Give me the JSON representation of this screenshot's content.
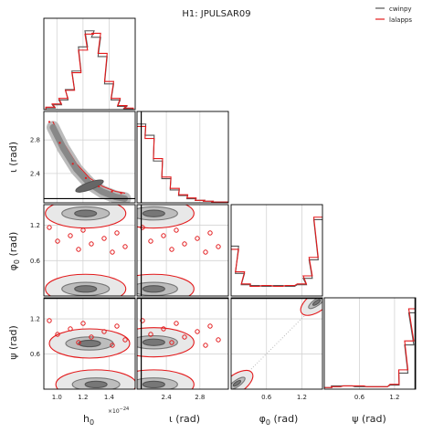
{
  "chart_data": {
    "type": "corner",
    "title": "H1: JPULSAR09",
    "legend": {
      "placement": "top-right",
      "entries": [
        {
          "name": "cwinpy",
          "color": "#555555"
        },
        {
          "name": "lalapps",
          "color": "#e31a1c"
        }
      ]
    },
    "colors": {
      "cwinpy": "#555555",
      "lalapps": "#e31a1c",
      "injection": "#000000"
    },
    "grid": true,
    "parameters": [
      {
        "key": "h0",
        "label": "h",
        "label_sub": "0",
        "range": [
          0.9,
          1.6
        ],
        "ticks": [
          1.0,
          1.2,
          1.4
        ],
        "tick_labels": [
          "1.0",
          "1.2",
          "1.4"
        ],
        "multiplier": "×10",
        "multiplier_exp": "−24"
      },
      {
        "key": "iota",
        "label": "ι (rad)",
        "range": [
          2.05,
          3.14
        ],
        "ticks": [
          2.4,
          2.8
        ],
        "tick_labels": [
          "2.4",
          "2.8"
        ],
        "injection": 2.1
      },
      {
        "key": "phi0",
        "label": "φ",
        "label_sub": "0",
        "label_unit": " (rad)",
        "range": [
          0.0,
          1.55
        ],
        "ticks": [
          0.6,
          1.2
        ],
        "tick_labels": [
          "0.6",
          "1.2"
        ]
      },
      {
        "key": "psi",
        "label": "ψ (rad)",
        "range": [
          0.0,
          1.56
        ],
        "ticks": [
          0.6,
          1.2
        ],
        "tick_labels": [
          "0.6",
          "1.2"
        ],
        "injection": 1.55
      }
    ],
    "marginals": {
      "h0": {
        "x": [
          0.95,
          1.0,
          1.05,
          1.1,
          1.15,
          1.2,
          1.25,
          1.3,
          1.35,
          1.4,
          1.45,
          1.5,
          1.55
        ],
        "cwinpy": [
          0.02,
          0.06,
          0.12,
          0.25,
          0.48,
          0.78,
          0.98,
          0.9,
          0.66,
          0.32,
          0.12,
          0.04,
          0.01
        ],
        "lalapps": [
          0.03,
          0.07,
          0.14,
          0.24,
          0.46,
          0.74,
          0.94,
          0.95,
          0.7,
          0.35,
          0.14,
          0.05,
          0.02
        ]
      },
      "iota": {
        "x": [
          2.1,
          2.2,
          2.3,
          2.4,
          2.5,
          2.6,
          2.7,
          2.8,
          2.9,
          3.0,
          3.1
        ],
        "cwinpy": [
          0.98,
          0.84,
          0.52,
          0.3,
          0.16,
          0.09,
          0.05,
          0.03,
          0.02,
          0.01,
          0.01
        ],
        "lalapps": [
          0.95,
          0.8,
          0.55,
          0.32,
          0.18,
          0.1,
          0.06,
          0.03,
          0.02,
          0.01,
          0.01
        ]
      },
      "phi0": {
        "x": [
          0.05,
          0.15,
          0.25,
          0.4,
          0.6,
          0.8,
          1.0,
          1.2,
          1.3,
          1.4,
          1.48
        ],
        "cwinpy": [
          0.62,
          0.28,
          0.14,
          0.13,
          0.12,
          0.13,
          0.12,
          0.14,
          0.22,
          0.45,
          0.95
        ],
        "lalapps": [
          0.58,
          0.3,
          0.15,
          0.12,
          0.13,
          0.12,
          0.13,
          0.15,
          0.25,
          0.48,
          0.98
        ]
      },
      "psi": {
        "x": [
          0.05,
          0.2,
          0.4,
          0.6,
          0.8,
          1.0,
          1.2,
          1.35,
          1.45,
          1.52
        ],
        "cwinpy": [
          0.02,
          0.04,
          0.04,
          0.03,
          0.03,
          0.03,
          0.05,
          0.2,
          0.55,
          0.95
        ],
        "lalapps": [
          0.02,
          0.03,
          0.04,
          0.04,
          0.03,
          0.03,
          0.06,
          0.24,
          0.6,
          1.0
        ]
      }
    },
    "joint_modes": [
      {
        "x": "h0",
        "y": "iota",
        "center": [
          1.25,
          2.25
        ],
        "shape": "ridge",
        "points": [
          [
            0.97,
            2.95
          ],
          [
            1.05,
            2.7
          ],
          [
            1.15,
            2.45
          ],
          [
            1.25,
            2.28
          ],
          [
            1.35,
            2.18
          ],
          [
            1.45,
            2.12
          ],
          [
            1.52,
            2.1
          ]
        ]
      },
      {
        "x": "h0",
        "y": "phi0",
        "modes": [
          [
            1.22,
            1.4
          ],
          [
            1.22,
            0.12
          ]
        ]
      },
      {
        "x": "h0",
        "y": "psi",
        "modes": [
          [
            1.25,
            0.78
          ],
          [
            1.3,
            0.08
          ]
        ]
      },
      {
        "x": "iota",
        "y": "phi0",
        "modes": [
          [
            2.25,
            1.4
          ],
          [
            2.25,
            0.12
          ]
        ]
      },
      {
        "x": "iota",
        "y": "psi",
        "modes": [
          [
            2.25,
            0.8
          ],
          [
            2.25,
            0.08
          ]
        ]
      },
      {
        "x": "phi0",
        "y": "psi",
        "modes": [
          [
            1.45,
            1.48
          ],
          [
            0.1,
            0.1
          ]
        ],
        "diagonal": true
      }
    ]
  }
}
